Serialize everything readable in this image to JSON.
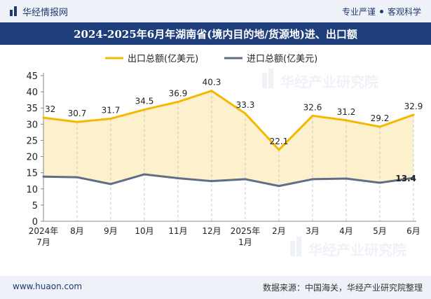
{
  "header": {
    "brand": "华经情报网",
    "tagline_left": "专业严谨",
    "tagline_right": "客观科学"
  },
  "title": "2024-2025年6月年湖南省(境内目的地/货源地)进、出口额",
  "footer": {
    "website": "www.huaon.com",
    "source": "数据来源：中国海关，华经产业研究院整理"
  },
  "watermark": "华经产业研究院",
  "colors": {
    "header_bg": "#eef2f8",
    "title_bg": "#1f3f7c",
    "export_line": "#f5b800",
    "export_fill": "#fdf0cc",
    "import_line": "#5f6e86"
  },
  "chart_data": {
    "type": "area",
    "title": "2024-2025年6月年湖南省(境内目的地/货源地)进、出口额",
    "categories": [
      "2024年\n7月",
      "8月",
      "9月",
      "10月",
      "11月",
      "12月",
      "2025年\n1月",
      "2月",
      "3月",
      "4月",
      "5月",
      "6月"
    ],
    "series": [
      {
        "name": "出口总额(亿美元)",
        "values": [
          32,
          30.7,
          31.7,
          34.5,
          36.9,
          40.3,
          33.3,
          22.1,
          32.6,
          31.2,
          29.2,
          32.9
        ],
        "labels": [
          "32",
          "30.7",
          "31.7",
          "34.5",
          "36.9",
          "40.3",
          "33.3",
          "22.1",
          "32.6",
          "31.2",
          "29.2",
          "32.9"
        ],
        "color": "#f5b800"
      },
      {
        "name": "进口总额(亿美元)",
        "values": [
          13.8,
          13.6,
          11.5,
          14.5,
          13.3,
          12.4,
          13,
          10.9,
          13,
          13.2,
          11.9,
          13.4
        ],
        "labels": [
          "",
          "",
          "",
          "",
          "",
          "",
          "",
          "",
          "",
          "",
          "",
          "13.4"
        ],
        "color": "#5f6e86"
      }
    ],
    "yticks": [
      "0",
      "5",
      "10",
      "15",
      "20",
      "25",
      "30",
      "35",
      "40",
      "45"
    ],
    "ylim": [
      0,
      45
    ],
    "legend_position": "top-center",
    "grid": false
  }
}
